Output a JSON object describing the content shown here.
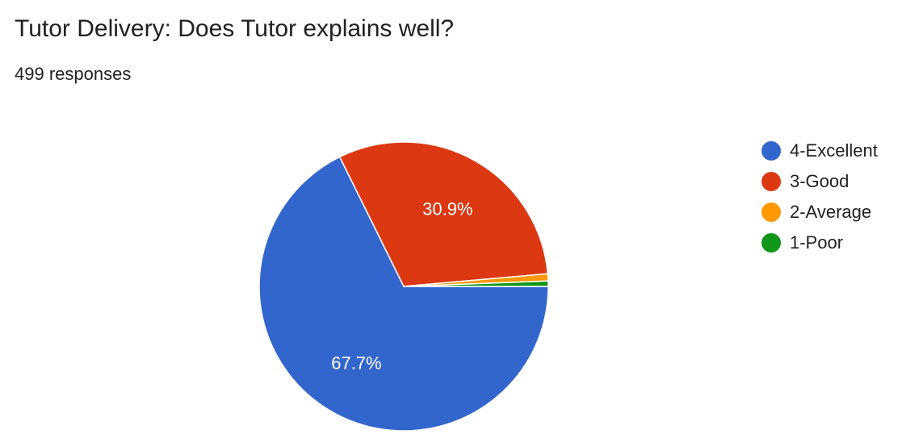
{
  "header": {
    "title": "Tutor Delivery: Does Tutor explains well?",
    "subtitle": "499 responses"
  },
  "chart_data": {
    "type": "pie",
    "title": "Tutor Delivery: Does Tutor explains well?",
    "categories": [
      "4-Excellent",
      "3-Good",
      "2-Average",
      "1-Poor"
    ],
    "values": [
      67.7,
      30.9,
      0.8,
      0.6
    ],
    "data_labels": [
      "67.7%",
      "30.9%",
      "",
      ""
    ],
    "colors": [
      "#3366cc",
      "#dc3912",
      "#ff9900",
      "#109618"
    ],
    "legend_position": "right"
  }
}
